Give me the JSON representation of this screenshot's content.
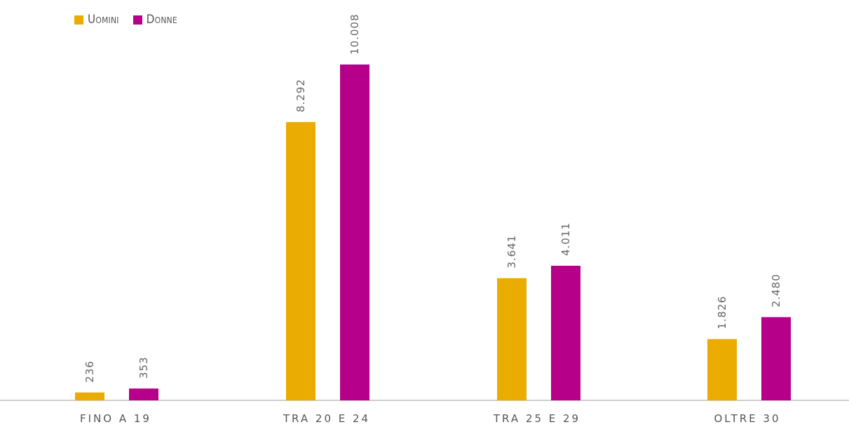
{
  "chart_data": {
    "type": "bar",
    "categories": [
      "FINO A 19",
      "TRA 20 E 24",
      "TRA 25 E 29",
      "OLTRE 30"
    ],
    "series": [
      {
        "name": "Uomini",
        "color": "#EAAC00",
        "values": [
          236,
          8292,
          3641,
          1826
        ],
        "labels": [
          "236",
          "8.292",
          "3.641",
          "1.826"
        ]
      },
      {
        "name": "Donne",
        "color": "#B7008A",
        "values": [
          353,
          10008,
          4011,
          2480
        ],
        "labels": [
          "353",
          "10.008",
          "4.011",
          "2.480"
        ]
      }
    ],
    "ylim": [
      0,
      10400
    ],
    "grid": false,
    "legend_position": "top-left",
    "axis_color": "#BFBFBF",
    "label_color": "#666666"
  }
}
